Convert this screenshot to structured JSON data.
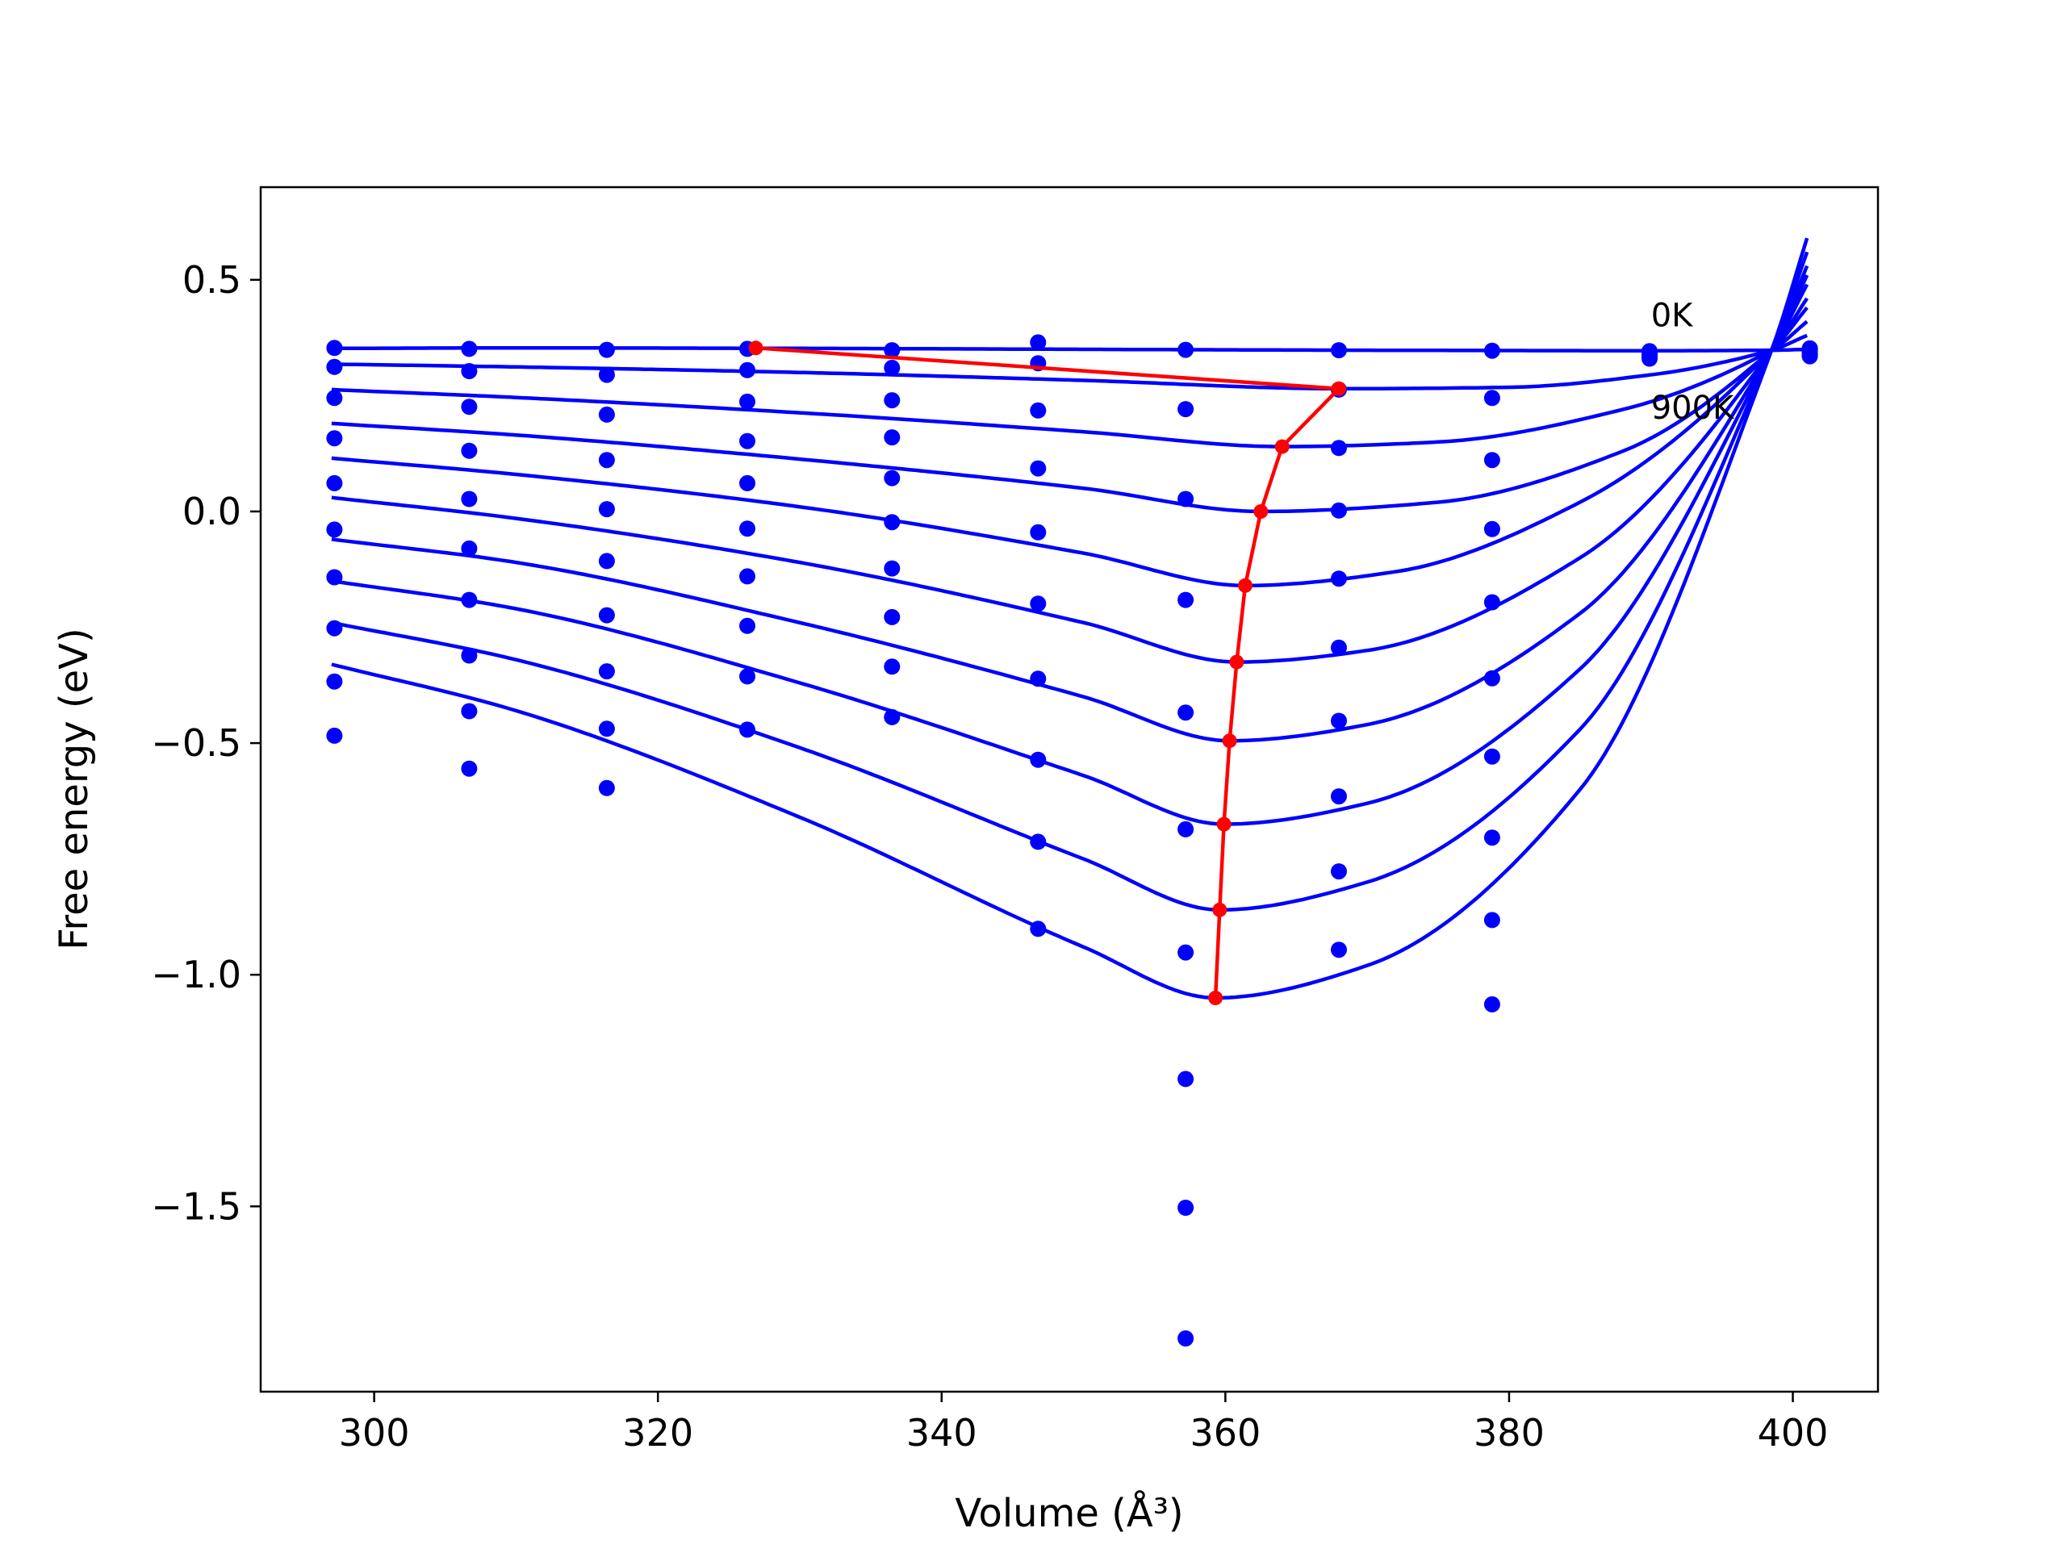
{
  "chart_data": {
    "type": "line",
    "title": "",
    "xlabel": "Volume (Å³)",
    "ylabel": "Free energy (eV)",
    "xlim": [
      292,
      406
    ],
    "ylim": [
      -1.9,
      0.7
    ],
    "x_ticks": [
      {
        "value": 300,
        "label": "300"
      },
      {
        "value": 320,
        "label": "320"
      },
      {
        "value": 340,
        "label": "340"
      },
      {
        "value": 360,
        "label": "360"
      },
      {
        "value": 380,
        "label": "380"
      },
      {
        "value": 400,
        "label": "400"
      }
    ],
    "y_ticks": [
      {
        "value": 0.5,
        "label": "0.5"
      },
      {
        "value": 0.0,
        "label": "0.0"
      },
      {
        "value": -0.5,
        "label": "−0.5"
      },
      {
        "value": -1.0,
        "label": "−1.0"
      },
      {
        "value": -1.5,
        "label": "−1.5"
      }
    ],
    "grid": false,
    "colors": {
      "curves": "#0000ff",
      "points": "#0000ff",
      "minima": "#ff0000"
    },
    "annotations": [
      {
        "text": "0K",
        "x": 390,
        "y": 0.4
      },
      {
        "text": "900K",
        "x": 390,
        "y": 0.2
      }
    ],
    "x_points": [
      297.2,
      306.7,
      316.4,
      326.3,
      336.5,
      346.8,
      357.2,
      368.0,
      378.8,
      389.9,
      401.2
    ],
    "points_by_volume": [
      [
        0.353,
        0.312,
        0.245,
        0.158,
        0.061,
        -0.039,
        -0.142,
        -0.252,
        -0.367,
        -0.484
      ],
      [
        0.351,
        0.303,
        0.226,
        0.131,
        0.027,
        -0.08,
        -0.191,
        -0.311,
        -0.431,
        -0.555
      ],
      [
        0.349,
        0.295,
        0.209,
        0.111,
        0.005,
        -0.107,
        -0.224,
        -0.345,
        -0.469,
        -0.597
      ],
      [
        0.351,
        0.305,
        0.237,
        0.152,
        0.061,
        -0.037,
        -0.14,
        -0.247,
        -0.356,
        -0.471
      ],
      [
        0.348,
        0.31,
        0.24,
        0.16,
        0.072,
        -0.023,
        -0.123,
        -0.228,
        -0.335,
        -0.444
      ],
      [
        0.365,
        0.32,
        0.218,
        0.093,
        -0.045,
        -0.199,
        -0.361,
        -0.536,
        -0.713,
        -0.901
      ],
      [
        0.349,
        0.221,
        0.027,
        -0.191,
        -0.434,
        -0.686,
        -0.952,
        -1.225,
        -1.503,
        -1.785
      ],
      [
        0.348,
        0.263,
        0.137,
        0.002,
        -0.145,
        -0.294,
        -0.452,
        -0.615,
        -0.777,
        -0.946
      ],
      [
        0.347,
        0.245,
        0.111,
        -0.038,
        -0.196,
        -0.36,
        -0.529,
        -0.704,
        -0.882,
        -1.064
      ],
      [
        0.346,
        0.343,
        0.338,
        0.334,
        0.33
      ],
      [
        0.352,
        0.349,
        0.345,
        0.341,
        0.337,
        0.335
      ]
    ],
    "series": [
      {
        "x": [
          297,
          310,
          330,
          350,
          370,
          390,
          398.5,
          401
        ],
        "y": [
          0.352,
          0.353,
          0.352,
          0.35,
          0.348,
          0.347,
          0.348,
          0.35
        ]
      },
      {
        "x": [
          297,
          310,
          330,
          350,
          368,
          380,
          390,
          398.5,
          401
        ],
        "y": [
          0.318,
          0.312,
          0.3,
          0.283,
          0.265,
          0.268,
          0.295,
          0.348,
          0.38
        ]
      },
      {
        "x": [
          297,
          310,
          330,
          350,
          364,
          375,
          388,
          398.5,
          401
        ],
        "y": [
          0.263,
          0.246,
          0.213,
          0.172,
          0.14,
          0.15,
          0.22,
          0.348,
          0.41
        ]
      },
      {
        "x": [
          297,
          310,
          330,
          350,
          362.5,
          375,
          388,
          398.5,
          401
        ],
        "y": [
          0.19,
          0.165,
          0.113,
          0.05,
          0.0,
          0.02,
          0.13,
          0.348,
          0.44
        ]
      },
      {
        "x": [
          297,
          310,
          330,
          350,
          361.4,
          372,
          385,
          398.5,
          401
        ],
        "y": [
          0.115,
          0.08,
          0.01,
          -0.09,
          -0.16,
          -0.13,
          0.02,
          0.348,
          0.46
        ]
      },
      {
        "x": [
          297,
          310,
          330,
          350,
          360.8,
          370,
          385,
          398.5,
          401
        ],
        "y": [
          0.03,
          -0.015,
          -0.11,
          -0.24,
          -0.325,
          -0.3,
          -0.1,
          0.348,
          0.49
        ]
      },
      {
        "x": [
          297,
          310,
          330,
          350,
          360.3,
          370,
          385,
          398.5,
          401
        ],
        "y": [
          -0.06,
          -0.11,
          -0.24,
          -0.4,
          -0.495,
          -0.46,
          -0.22,
          0.348,
          0.51
        ]
      },
      {
        "x": [
          297,
          310,
          330,
          350,
          359.9,
          370,
          385,
          398.5,
          401
        ],
        "y": [
          -0.15,
          -0.21,
          -0.37,
          -0.57,
          -0.675,
          -0.63,
          -0.34,
          0.348,
          0.53
        ]
      },
      {
        "x": [
          297,
          310,
          330,
          350,
          359.6,
          370,
          385,
          398.5,
          401
        ],
        "y": [
          -0.24,
          -0.32,
          -0.51,
          -0.75,
          -0.86,
          -0.8,
          -0.47,
          0.348,
          0.56
        ]
      },
      {
        "x": [
          297,
          310,
          330,
          350,
          359.3,
          370,
          385,
          398.5,
          401
        ],
        "y": [
          -0.33,
          -0.43,
          -0.66,
          -0.94,
          -1.05,
          -0.98,
          -0.6,
          0.348,
          0.59
        ]
      }
    ],
    "minima": {
      "x": [
        326.9,
        368.0,
        364.0,
        362.5,
        361.4,
        360.8,
        360.3,
        359.9,
        359.6,
        359.3
      ],
      "y": [
        0.353,
        0.265,
        0.14,
        0.0,
        -0.16,
        -0.325,
        -0.495,
        -0.675,
        -0.86,
        -1.05
      ]
    }
  }
}
